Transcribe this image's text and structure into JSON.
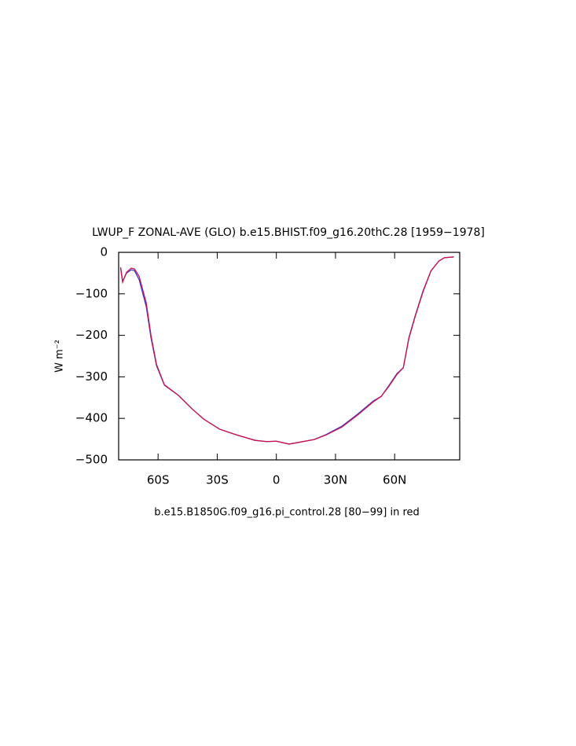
{
  "chart_data": {
    "type": "line",
    "title": "LWUP_F ZONAL-AVE (GLO) b.e15.BHIST.f09_g16.20thC.28 [1959−1978]",
    "subtitle": "b.e15.B1850G.f09_g16.pi_control.28 [80−99] in red",
    "y_label": "W m⁻²",
    "x": [
      -79,
      -78,
      -76,
      -73.6,
      -72,
      -69.6,
      -66,
      -63.6,
      -60.8,
      -56.8,
      -49.6,
      -42.8,
      -36.8,
      -28.8,
      -20.8,
      -10.8,
      -4.8,
      0,
      6.4,
      11.2,
      19.2,
      25.2,
      33.2,
      41.2,
      49.2,
      53.2,
      57.2,
      61.2,
      64.4,
      67.2,
      70.4,
      74.4,
      78.4,
      82.4,
      85.2,
      90
    ],
    "series": [
      {
        "color": "#3a3ad0",
        "values": [
          -36,
          -70,
          -50,
          -42,
          -44,
          -66,
          -131,
          -206,
          -273,
          -320,
          -345,
          -377,
          -402,
          -426,
          -439,
          -453,
          -456,
          -455,
          -462,
          -458,
          -451,
          -439,
          -419,
          -390,
          -358,
          -347,
          -320,
          -292,
          -278,
          -206,
          -153,
          -93,
          -45,
          -21,
          -13,
          -11
        ]
      },
      {
        "color": "#d0104a",
        "values": [
          -38,
          -72,
          -48,
          -38,
          -40,
          -58,
          -122,
          -200,
          -270,
          -319,
          -345,
          -377,
          -402,
          -426,
          -439,
          -453,
          -456,
          -455,
          -462,
          -458,
          -451,
          -440,
          -421,
          -392,
          -360,
          -347,
          -322,
          -294,
          -278,
          -208,
          -155,
          -95,
          -45,
          -21,
          -13,
          -11
        ]
      }
    ],
    "xlim": [
      -80,
      93
    ],
    "ylim": [
      -500,
      0
    ],
    "xticks": [
      {
        "value": -60,
        "label": "60S"
      },
      {
        "value": -30,
        "label": "30S"
      },
      0,
      {
        "value": 30,
        "label": "30N"
      },
      {
        "value": 60,
        "label": "60N"
      }
    ],
    "yticks": [
      0,
      {
        "value": -100,
        "label": "−100"
      },
      {
        "value": -200,
        "label": "−200"
      },
      {
        "value": -300,
        "label": "−300"
      },
      {
        "value": -400,
        "label": "−400"
      },
      {
        "value": -500,
        "label": "−500"
      }
    ]
  }
}
